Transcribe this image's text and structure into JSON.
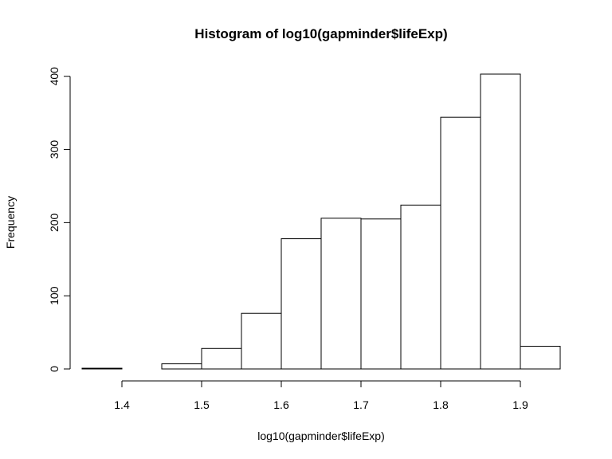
{
  "chart_data": {
    "type": "bar",
    "subtype": "histogram",
    "title": "Histogram of log10(gapminder$lifeExp)",
    "xlabel": "log10(gapminder$lifeExp)",
    "ylabel": "Frequency",
    "bins": [
      {
        "start": 1.35,
        "end": 1.4,
        "count": 1
      },
      {
        "start": 1.4,
        "end": 1.45,
        "count": 0
      },
      {
        "start": 1.45,
        "end": 1.5,
        "count": 7
      },
      {
        "start": 1.5,
        "end": 1.55,
        "count": 28
      },
      {
        "start": 1.55,
        "end": 1.6,
        "count": 76
      },
      {
        "start": 1.6,
        "end": 1.65,
        "count": 178
      },
      {
        "start": 1.65,
        "end": 1.7,
        "count": 206
      },
      {
        "start": 1.7,
        "end": 1.75,
        "count": 205
      },
      {
        "start": 1.75,
        "end": 1.8,
        "count": 224
      },
      {
        "start": 1.8,
        "end": 1.85,
        "count": 344
      },
      {
        "start": 1.85,
        "end": 1.9,
        "count": 403
      },
      {
        "start": 1.9,
        "end": 1.95,
        "count": 31
      }
    ],
    "xlim": [
      1.35,
      1.95
    ],
    "ylim": [
      0,
      403
    ],
    "x_ticks": [
      "1.4",
      "1.5",
      "1.6",
      "1.7",
      "1.8",
      "1.9"
    ],
    "y_ticks": [
      "0",
      "100",
      "200",
      "300",
      "400"
    ],
    "grid": false,
    "bar_fill": "#ffffff",
    "bar_stroke": "#000000"
  }
}
